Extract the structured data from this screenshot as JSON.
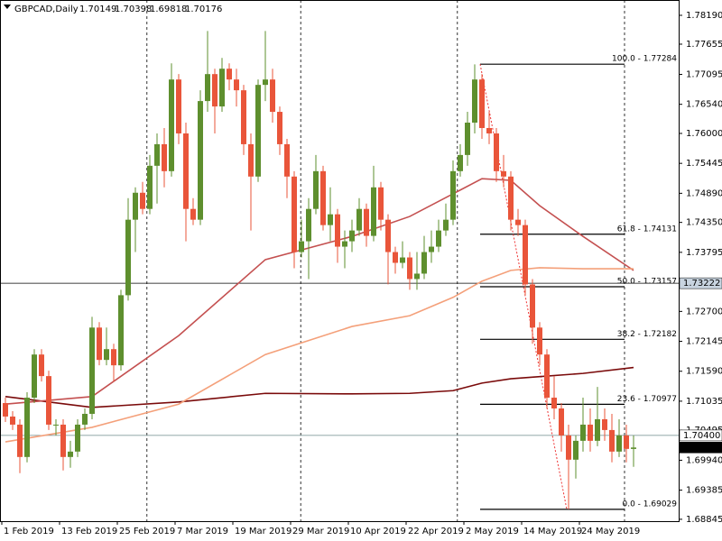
{
  "chart_data": {
    "type": "candlestick",
    "title": "GBPCAD,Daily",
    "up_color": "#5e8f2e",
    "down_color": "#e9553a",
    "xlim": [
      -0.75,
      93.25
    ],
    "ylim": [
      1.6881,
      1.78474
    ],
    "xticks": [
      {
        "value": 0,
        "label": "1 Feb 2019"
      },
      {
        "value": 8,
        "label": "13 Feb 2019"
      },
      {
        "value": 16,
        "label": "25 Feb 2019"
      },
      {
        "value": 24,
        "label": "7 Mar 2019"
      },
      {
        "value": 32,
        "label": "19 Mar 2019"
      },
      {
        "value": 40,
        "label": "29 Mar 2019"
      },
      {
        "value": 48,
        "label": "10 Apr 2019"
      },
      {
        "value": 56,
        "label": "22 Apr 2019"
      },
      {
        "value": 64,
        "label": "2 May 2019"
      },
      {
        "value": 72,
        "label": "14 May 2019"
      },
      {
        "value": 80,
        "label": "24 May 2019"
      }
    ],
    "xgrid": [
      19.6,
      40.9,
      62.6,
      85.75
    ],
    "yticks": [
      {
        "value": 1.7819,
        "label": "1.78190"
      },
      {
        "value": 1.77655,
        "label": "1.77655"
      },
      {
        "value": 1.77095,
        "label": "1.77095"
      },
      {
        "value": 1.7654,
        "label": "1.76540"
      },
      {
        "value": 1.76,
        "label": "1.76000"
      },
      {
        "value": 1.75445,
        "label": "1.75445"
      },
      {
        "value": 1.7489,
        "label": "1.74890"
      },
      {
        "value": 1.7435,
        "label": "1.74350"
      },
      {
        "value": 1.73795,
        "label": "1.73795"
      },
      {
        "value": 1.727,
        "label": "1.72700"
      },
      {
        "value": 1.72145,
        "label": "1.72145"
      },
      {
        "value": 1.7159,
        "label": "1.71590"
      },
      {
        "value": 1.71035,
        "label": "1.71035"
      },
      {
        "value": 1.70495,
        "label": "1.70495"
      },
      {
        "value": 1.6994,
        "label": "1.69940"
      },
      {
        "value": 1.69385,
        "label": "1.69385"
      },
      {
        "value": 1.68845,
        "label": "1.68845"
      }
    ],
    "open": [
      1.71,
      1.7075,
      1.706,
      1.7,
      1.711,
      1.719,
      1.715,
      1.706,
      1.706,
      1.7,
      1.701,
      1.706,
      1.708,
      1.724,
      1.718,
      1.72,
      1.717,
      1.73,
      1.744,
      1.749,
      1.746,
      1.754,
      1.758,
      1.753,
      1.77,
      1.76,
      1.746,
      1.744,
      1.766,
      1.771,
      1.765,
      1.772,
      1.77,
      1.768,
      1.758,
      1.752,
      1.769,
      1.77,
      1.764,
      1.758,
      1.752,
      1.738,
      1.74,
      1.746,
      1.753,
      1.743,
      1.745,
      1.739,
      1.74,
      1.742,
      1.746,
      1.741,
      1.75,
      1.744,
      1.738,
      1.736,
      1.737,
      1.733,
      1.734,
      1.738,
      1.739,
      1.742,
      1.744,
      1.753,
      1.756,
      1.762,
      1.77,
      1.761,
      1.76,
      1.753,
      1.752,
      1.744,
      1.743,
      1.732,
      1.724,
      1.719,
      1.711,
      1.709,
      1.704,
      1.6995,
      1.703,
      1.706,
      1.703,
      1.707,
      1.705,
      1.701,
      1.704,
      1.70149
    ],
    "high": [
      1.711,
      1.7085,
      1.707,
      1.712,
      1.72,
      1.72,
      1.716,
      1.707,
      1.707,
      1.703,
      1.707,
      1.709,
      1.726,
      1.725,
      1.724,
      1.721,
      1.731,
      1.748,
      1.75,
      1.751,
      1.756,
      1.76,
      1.761,
      1.773,
      1.771,
      1.762,
      1.748,
      1.768,
      1.779,
      1.772,
      1.774,
      1.773,
      1.772,
      1.769,
      1.76,
      1.77,
      1.779,
      1.772,
      1.765,
      1.759,
      1.753,
      1.744,
      1.748,
      1.756,
      1.754,
      1.75,
      1.746,
      1.742,
      1.744,
      1.748,
      1.747,
      1.754,
      1.751,
      1.745,
      1.739,
      1.74,
      1.738,
      1.738,
      1.741,
      1.742,
      1.744,
      1.747,
      1.755,
      1.758,
      1.764,
      1.7728,
      1.771,
      1.764,
      1.761,
      1.756,
      1.753,
      1.746,
      1.744,
      1.733,
      1.725,
      1.72,
      1.715,
      1.71,
      1.706,
      1.704,
      1.711,
      1.709,
      1.713,
      1.709,
      1.708,
      1.707,
      1.706,
      1.70398
    ],
    "low": [
      1.7065,
      1.705,
      1.697,
      1.699,
      1.71,
      1.714,
      1.705,
      1.704,
      1.6975,
      1.698,
      1.7,
      1.705,
      1.707,
      1.717,
      1.717,
      1.714,
      1.716,
      1.729,
      1.738,
      1.745,
      1.745,
      1.747,
      1.75,
      1.752,
      1.758,
      1.74,
      1.743,
      1.743,
      1.764,
      1.76,
      1.764,
      1.768,
      1.765,
      1.756,
      1.742,
      1.751,
      1.766,
      1.762,
      1.756,
      1.748,
      1.735,
      1.737,
      1.733,
      1.745,
      1.742,
      1.74,
      1.736,
      1.735,
      1.738,
      1.741,
      1.739,
      1.74,
      1.742,
      1.732,
      1.734,
      1.735,
      1.731,
      1.731,
      1.733,
      1.736,
      1.738,
      1.741,
      1.743,
      1.752,
      1.754,
      1.76,
      1.759,
      1.758,
      1.751,
      1.75,
      1.742,
      1.741,
      1.73,
      1.721,
      1.717,
      1.709,
      1.707,
      1.701,
      1.6903,
      1.696,
      1.701,
      1.701,
      1.702,
      1.703,
      1.699,
      1.7,
      1.699,
      1.69818
    ],
    "close": [
      1.7075,
      1.706,
      1.7,
      1.711,
      1.719,
      1.715,
      1.706,
      1.706,
      1.7,
      1.701,
      1.706,
      1.708,
      1.724,
      1.718,
      1.72,
      1.717,
      1.73,
      1.744,
      1.749,
      1.746,
      1.754,
      1.758,
      1.753,
      1.77,
      1.76,
      1.746,
      1.744,
      1.766,
      1.771,
      1.765,
      1.772,
      1.77,
      1.768,
      1.758,
      1.752,
      1.769,
      1.77,
      1.764,
      1.758,
      1.752,
      1.738,
      1.74,
      1.746,
      1.753,
      1.743,
      1.745,
      1.739,
      1.74,
      1.742,
      1.746,
      1.741,
      1.75,
      1.744,
      1.738,
      1.736,
      1.737,
      1.733,
      1.734,
      1.738,
      1.739,
      1.742,
      1.744,
      1.753,
      1.756,
      1.762,
      1.77,
      1.761,
      1.76,
      1.753,
      1.752,
      1.744,
      1.743,
      1.732,
      1.724,
      1.719,
      1.711,
      1.709,
      1.704,
      1.6995,
      1.703,
      1.706,
      1.703,
      1.707,
      1.705,
      1.701,
      1.704,
      1.7015,
      1.70176
    ],
    "series": [
      {
        "color": "#7a0a0a",
        "x": [
          0,
          12,
          24,
          36,
          48,
          56,
          62,
          66,
          70,
          74,
          80,
          87
        ],
        "values": [
          1.7112,
          1.7092,
          1.7102,
          1.7118,
          1.7117,
          1.7118,
          1.7123,
          1.7137,
          1.7145,
          1.7149,
          1.7155,
          1.7166
        ]
      },
      {
        "color": "#c45050",
        "x": [
          0,
          12,
          24,
          36,
          48,
          56,
          62,
          66,
          70,
          74,
          80,
          87
        ],
        "values": [
          1.7098,
          1.7112,
          1.7225,
          1.7366,
          1.7409,
          1.7446,
          1.7488,
          1.7516,
          1.7513,
          1.7466,
          1.7409,
          1.7346
        ]
      },
      {
        "color": "#f4a07a",
        "x": [
          0,
          12,
          24,
          36,
          48,
          56,
          62,
          66,
          70,
          74,
          80,
          87
        ],
        "values": [
          1.7028,
          1.7055,
          1.7098,
          1.719,
          1.7242,
          1.7262,
          1.7296,
          1.7326,
          1.7346,
          1.7351,
          1.7349,
          1.7349
        ]
      }
    ],
    "fib": [
      {
        "value": 1.77284,
        "label": "100.0 - 1.77284"
      },
      {
        "value": 1.74131,
        "label": "61.8 - 1.74131"
      },
      {
        "value": 1.73157,
        "label": "50.0 - 1.73157"
      },
      {
        "value": 1.72182,
        "label": "38.2 - 1.72182"
      },
      {
        "value": 1.70977,
        "label": "23.6 - 1.70977"
      },
      {
        "value": 1.69029,
        "label": "0.0 - 1.69029"
      }
    ],
    "hlines": [
      {
        "value": 1.73222,
        "label": "1.73222"
      },
      {
        "value": 1.704,
        "label": "1.70400"
      }
    ]
  }
}
